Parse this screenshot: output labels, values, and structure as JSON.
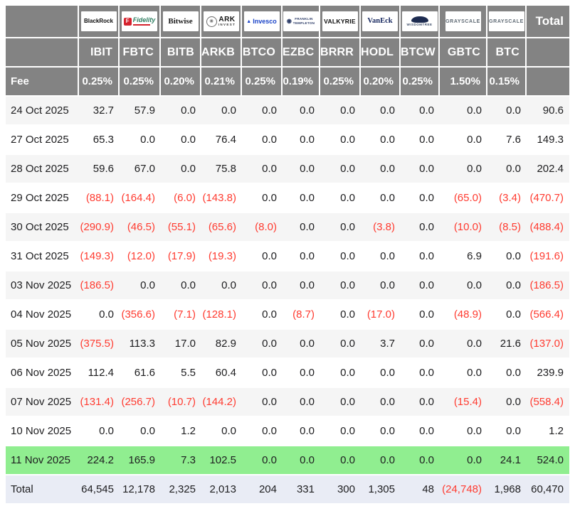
{
  "labels": {
    "fee": "Fee",
    "total_header": "Total",
    "total_row": "Total"
  },
  "icons": {
    "ark": "✳",
    "invesco": "▲",
    "franklin": "◉"
  },
  "issuers": [
    {
      "logo": "blackrock",
      "name": "BlackRock",
      "ticker": "IBIT",
      "fee": "0.25%"
    },
    {
      "logo": "fidelity",
      "name": "Fidelity",
      "icon_letter": "F",
      "ticker": "FBTC",
      "fee": "0.25%"
    },
    {
      "logo": "bitwise",
      "name": "Bitwise",
      "ticker": "BITB",
      "fee": "0.20%"
    },
    {
      "logo": "ark",
      "name": "ARK",
      "name2": "INVEST",
      "ticker": "ARKB",
      "fee": "0.21%"
    },
    {
      "logo": "invesco",
      "name": "Invesco",
      "ticker": "BTCO",
      "fee": "0.25%"
    },
    {
      "logo": "franklin",
      "name": "FRANKLIN",
      "name2": "TEMPLETON",
      "ticker": "EZBC",
      "fee": "0.19%"
    },
    {
      "logo": "valkyrie",
      "name": "VALKYRIE",
      "ticker": "BRRR",
      "fee": "0.25%"
    },
    {
      "logo": "vaneck",
      "name": "VanEck",
      "ticker": "HODL",
      "fee": "0.20%"
    },
    {
      "logo": "wisdomtree",
      "name": "WISDOMTREE",
      "ticker": "BTCW",
      "fee": "0.25%"
    },
    {
      "logo": "grayscale",
      "name": "GRAYSCALE",
      "ticker": "GBTC",
      "fee": "1.50%"
    },
    {
      "logo": "grayscale",
      "name": "GRAYSCALE",
      "ticker": "BTC",
      "fee": "0.15%"
    }
  ],
  "rows": [
    {
      "date": "24 Oct 2025",
      "values": [
        "32.7",
        "57.9",
        "0.0",
        "0.0",
        "0.0",
        "0.0",
        "0.0",
        "0.0",
        "0.0",
        "0.0",
        "0.0"
      ],
      "total": "90.6"
    },
    {
      "date": "27 Oct 2025",
      "values": [
        "65.3",
        "0.0",
        "0.0",
        "76.4",
        "0.0",
        "0.0",
        "0.0",
        "0.0",
        "0.0",
        "0.0",
        "7.6"
      ],
      "total": "149.3"
    },
    {
      "date": "28 Oct 2025",
      "values": [
        "59.6",
        "67.0",
        "0.0",
        "75.8",
        "0.0",
        "0.0",
        "0.0",
        "0.0",
        "0.0",
        "0.0",
        "0.0"
      ],
      "total": "202.4"
    },
    {
      "date": "29 Oct 2025",
      "values": [
        "(88.1)",
        "(164.4)",
        "(6.0)",
        "(143.8)",
        "0.0",
        "0.0",
        "0.0",
        "0.0",
        "0.0",
        "(65.0)",
        "(3.4)"
      ],
      "total": "(470.7)"
    },
    {
      "date": "30 Oct 2025",
      "values": [
        "(290.9)",
        "(46.5)",
        "(55.1)",
        "(65.6)",
        "(8.0)",
        "0.0",
        "0.0",
        "(3.8)",
        "0.0",
        "(10.0)",
        "(8.5)"
      ],
      "total": "(488.4)"
    },
    {
      "date": "31 Oct 2025",
      "values": [
        "(149.3)",
        "(12.0)",
        "(17.9)",
        "(19.3)",
        "0.0",
        "0.0",
        "0.0",
        "0.0",
        "0.0",
        "6.9",
        "0.0"
      ],
      "total": "(191.6)"
    },
    {
      "date": "03 Nov 2025",
      "values": [
        "(186.5)",
        "0.0",
        "0.0",
        "0.0",
        "0.0",
        "0.0",
        "0.0",
        "0.0",
        "0.0",
        "0.0",
        "0.0"
      ],
      "total": "(186.5)"
    },
    {
      "date": "04 Nov 2025",
      "values": [
        "0.0",
        "(356.6)",
        "(7.1)",
        "(128.1)",
        "0.0",
        "(8.7)",
        "0.0",
        "(17.0)",
        "0.0",
        "(48.9)",
        "0.0"
      ],
      "total": "(566.4)"
    },
    {
      "date": "05 Nov 2025",
      "values": [
        "(375.5)",
        "113.3",
        "17.0",
        "82.9",
        "0.0",
        "0.0",
        "0.0",
        "3.7",
        "0.0",
        "0.0",
        "21.6"
      ],
      "total": "(137.0)"
    },
    {
      "date": "06 Nov 2025",
      "values": [
        "112.4",
        "61.6",
        "5.5",
        "60.4",
        "0.0",
        "0.0",
        "0.0",
        "0.0",
        "0.0",
        "0.0",
        "0.0"
      ],
      "total": "239.9"
    },
    {
      "date": "07 Nov 2025",
      "values": [
        "(131.4)",
        "(256.7)",
        "(10.7)",
        "(144.2)",
        "0.0",
        "0.0",
        "0.0",
        "0.0",
        "0.0",
        "(15.4)",
        "0.0"
      ],
      "total": "(558.4)"
    },
    {
      "date": "10 Nov 2025",
      "values": [
        "0.0",
        "0.0",
        "1.2",
        "0.0",
        "0.0",
        "0.0",
        "0.0",
        "0.0",
        "0.0",
        "0.0",
        "0.0"
      ],
      "total": "1.2"
    },
    {
      "date": "11 Nov 2025",
      "highlight": true,
      "values": [
        "224.2",
        "165.9",
        "7.3",
        "102.5",
        "0.0",
        "0.0",
        "0.0",
        "0.0",
        "0.0",
        "0.0",
        "24.1"
      ],
      "total": "524.0"
    }
  ],
  "total_row": {
    "values": [
      "64,545",
      "12,178",
      "2,325",
      "2,013",
      "204",
      "331",
      "300",
      "1,305",
      "48",
      "(24,748)",
      "1,968"
    ],
    "total": "60,470"
  },
  "colors": {
    "header_bg": "#838383",
    "header_text": "#ffffff",
    "negative": "#ff3b30",
    "positive_text": "#1d1d1f",
    "highlight_row": "#90ee90",
    "stripe_row": "#f5f5f5",
    "total_row_bg": "#e9ecf5"
  }
}
